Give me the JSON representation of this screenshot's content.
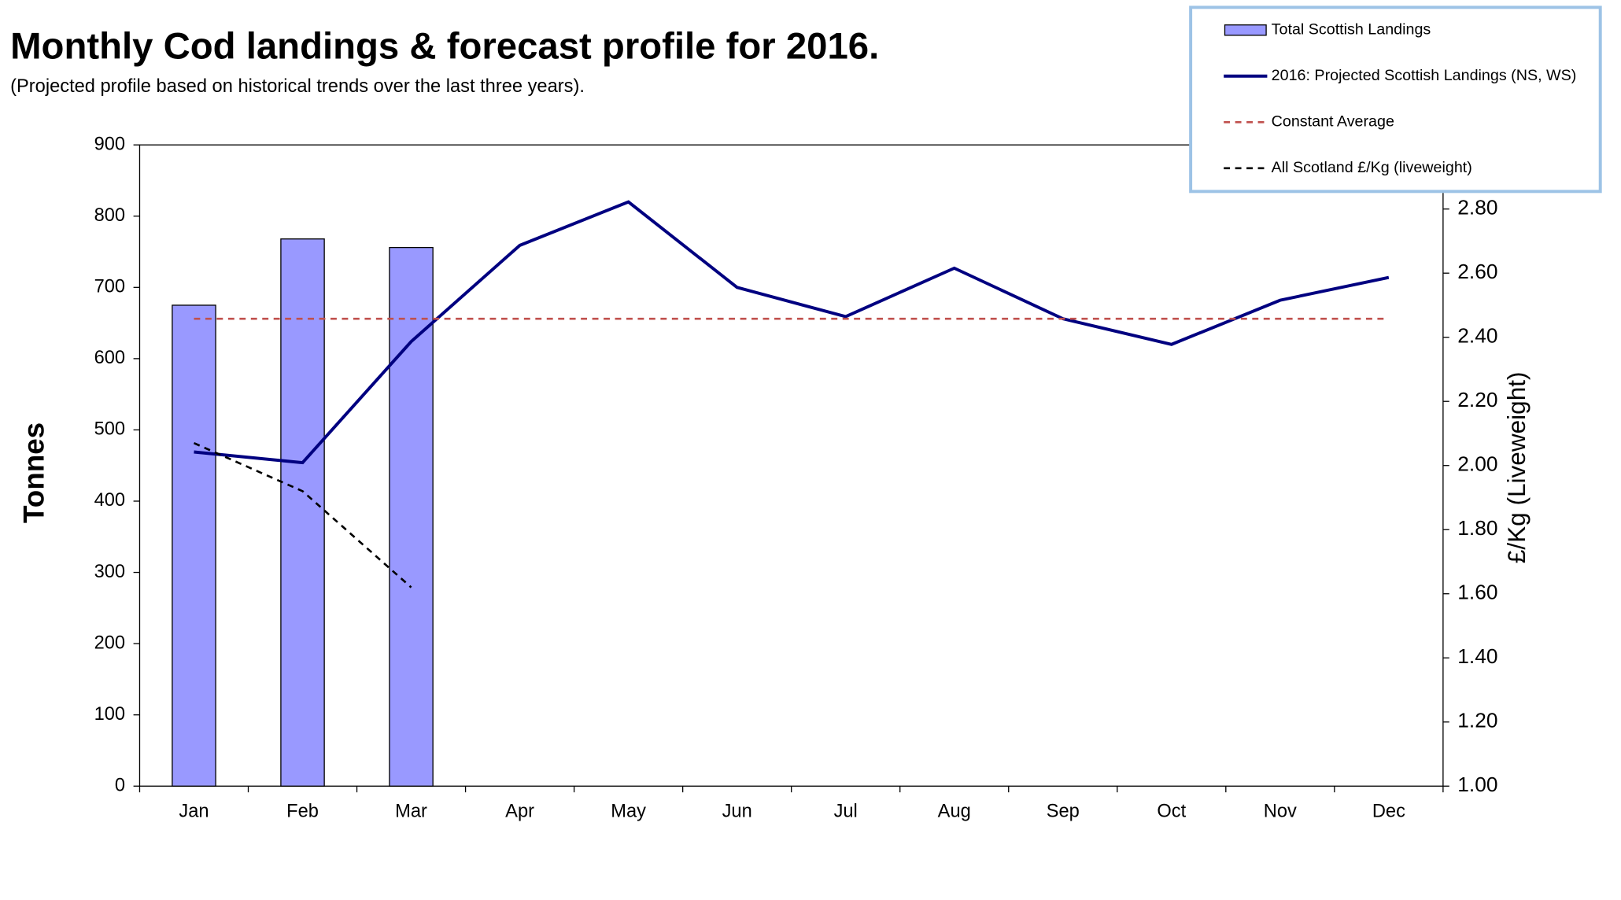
{
  "chart_data": {
    "type": "combo",
    "title": "Monthly Cod landings & forecast profile for 2016.",
    "subtitle": "(Projected profile based on historical trends over the last three years).",
    "y_label": "Tonnes",
    "y2_label": "£/Kg (Liveweight)",
    "categories": [
      "Jan",
      "Feb",
      "Mar",
      "Apr",
      "May",
      "Jun",
      "Jul",
      "Aug",
      "Sep",
      "Oct",
      "Nov",
      "Dec"
    ],
    "ylim": [
      0,
      900
    ],
    "yticks": [
      0,
      100,
      200,
      300,
      400,
      500,
      600,
      700,
      800,
      900
    ],
    "y2lim": [
      1,
      3
    ],
    "y2ticks": [
      {
        "value": 1,
        "label": "1.00"
      },
      {
        "value": 1.2,
        "label": "1.20"
      },
      {
        "value": 1.4,
        "label": "1.40"
      },
      {
        "value": 1.6,
        "label": "1.60"
      },
      {
        "value": 1.8,
        "label": "1.80"
      },
      {
        "value": 2,
        "label": "2.00"
      },
      {
        "value": 2.2,
        "label": "2.20"
      },
      {
        "value": 2.4,
        "label": "2.40"
      },
      {
        "value": 2.6,
        "label": "2.60"
      },
      {
        "value": 2.8,
        "label": "2.80"
      }
    ],
    "legend": "top-right",
    "series": [
      {
        "name": "Total Scottish Landings",
        "type": "bar",
        "color": "#9999ff",
        "values": [
          675,
          768,
          756,
          null,
          null,
          null,
          null,
          null,
          null,
          null,
          null,
          null
        ]
      },
      {
        "name": "2016: Projected Scottish Landings (NS, WS)",
        "type": "line",
        "color": "#000080",
        "values": [
          469,
          454,
          624,
          759,
          820,
          700,
          659,
          727,
          656,
          620,
          682,
          714
        ]
      },
      {
        "name": "Constant Average",
        "type": "line",
        "dash": "dashed",
        "color": "#c0504d",
        "values": [
          656,
          656,
          656,
          656,
          656,
          656,
          656,
          656,
          656,
          656,
          656,
          656
        ]
      },
      {
        "name": "All Scotland £/Kg (liveweight)",
        "type": "line",
        "dash": "dashed",
        "axis": "y2",
        "color": "#000000",
        "values": [
          2.07,
          1.92,
          1.62,
          null,
          null,
          null,
          null,
          null,
          null,
          null,
          null,
          null
        ]
      }
    ]
  }
}
